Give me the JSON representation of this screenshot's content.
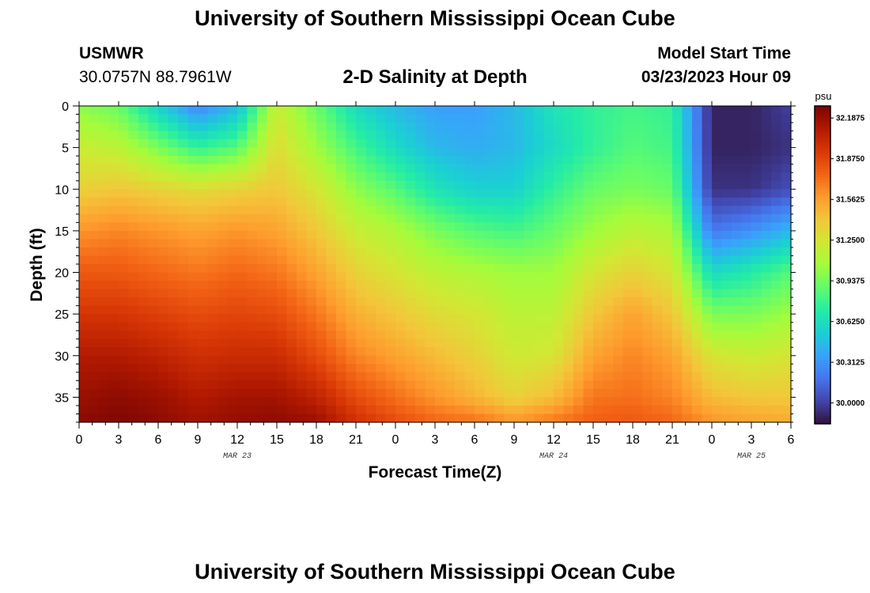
{
  "header": {
    "title": "University of Southern Mississippi Ocean Cube",
    "station": "USMWR",
    "coords": "30.0757N  88.7961W",
    "subtitle": "2-D Salinity at Depth",
    "model_start_label": "Model Start Time",
    "model_start_value": "03/23/2023 Hour 09"
  },
  "footer": {
    "title": "University of Southern Mississippi Ocean Cube"
  },
  "chart_data": {
    "type": "heatmap",
    "title": "2-D Salinity at Depth",
    "xlabel": "Forecast Time(Z)",
    "ylabel": "Depth (ft)",
    "x_range_hours": [
      0,
      54
    ],
    "y_range_ft": [
      0,
      38
    ],
    "x_ticks": [
      "0",
      "3",
      "6",
      "9",
      "12",
      "15",
      "18",
      "21",
      "0",
      "3",
      "6",
      "9",
      "12",
      "15",
      "18",
      "21",
      "0",
      "3",
      "6"
    ],
    "date_labels": [
      {
        "label": "MAR 23",
        "hour": 12
      },
      {
        "label": "MAR 24",
        "hour": 36
      },
      {
        "label": "MAR 25",
        "hour": 51
      }
    ],
    "y_ticks": [
      "0",
      "5",
      "10",
      "15",
      "20",
      "25",
      "30",
      "35"
    ],
    "colorbar": {
      "unit": "psu",
      "min": 29.84,
      "max": 32.28,
      "ticks": [
        "32.1875",
        "31.8750",
        "31.5625",
        "31.2500",
        "30.9375",
        "30.6250",
        "30.3125",
        "30.0000"
      ]
    },
    "colormap": [
      "#30123b",
      "#4145ab",
      "#4675ed",
      "#39a2fc",
      "#1bcfd4",
      "#24eca6",
      "#61fc6c",
      "#a4fc3b",
      "#d1e834",
      "#f3c63a",
      "#fe9b2d",
      "#f36315",
      "#d93806",
      "#b11901",
      "#7a0402"
    ],
    "profile_hours": [
      0,
      3,
      6,
      9,
      12,
      15,
      18,
      21,
      24,
      27,
      30,
      33,
      36,
      39,
      42,
      45,
      48,
      51,
      54
    ],
    "profile_depths_ft": [
      0,
      5,
      10,
      15,
      20,
      25,
      30,
      35,
      38
    ],
    "salinity_psu": [
      [
        31.0,
        31.2,
        31.35,
        31.6,
        31.8,
        31.95,
        32.1,
        32.18,
        32.22
      ],
      [
        30.9,
        31.15,
        31.4,
        31.65,
        31.8,
        31.95,
        32.1,
        32.22,
        32.26
      ],
      [
        30.55,
        30.95,
        31.35,
        31.6,
        31.75,
        31.9,
        32.05,
        32.18,
        32.22
      ],
      [
        30.25,
        30.75,
        31.3,
        31.55,
        31.7,
        31.85,
        31.98,
        32.1,
        32.16
      ],
      [
        30.45,
        30.85,
        31.35,
        31.6,
        31.75,
        31.88,
        32.0,
        32.15,
        32.2
      ],
      [
        31.2,
        31.3,
        31.4,
        31.55,
        31.7,
        31.85,
        32.0,
        32.15,
        32.22
      ],
      [
        30.9,
        31.05,
        31.25,
        31.4,
        31.55,
        31.7,
        31.85,
        32.05,
        32.18
      ],
      [
        30.6,
        30.8,
        31.0,
        31.2,
        31.35,
        31.5,
        31.65,
        31.85,
        31.98
      ],
      [
        30.45,
        30.6,
        30.85,
        31.1,
        31.25,
        31.4,
        31.55,
        31.72,
        31.85
      ],
      [
        30.35,
        30.45,
        30.65,
        30.95,
        31.15,
        31.3,
        31.45,
        31.6,
        31.75
      ],
      [
        30.35,
        30.4,
        30.55,
        30.85,
        31.1,
        31.25,
        31.35,
        31.48,
        31.72
      ],
      [
        30.45,
        30.45,
        30.55,
        30.8,
        31.05,
        31.15,
        31.22,
        31.35,
        31.6
      ],
      [
        30.65,
        30.6,
        30.75,
        30.9,
        31.05,
        31.15,
        31.25,
        31.45,
        31.7
      ],
      [
        30.75,
        30.75,
        30.9,
        31.05,
        31.25,
        31.4,
        31.55,
        31.7,
        31.78
      ],
      [
        30.8,
        30.85,
        30.95,
        31.15,
        31.35,
        31.55,
        31.65,
        31.72,
        31.8
      ],
      [
        30.75,
        30.8,
        30.9,
        31.1,
        31.25,
        31.4,
        31.55,
        31.65,
        31.75
      ],
      [
        29.9,
        29.9,
        29.95,
        30.2,
        30.6,
        30.95,
        31.25,
        31.45,
        31.6
      ],
      [
        29.9,
        29.9,
        29.95,
        30.3,
        30.7,
        30.95,
        31.2,
        31.4,
        31.55
      ],
      [
        30.0,
        29.95,
        30.05,
        30.45,
        30.85,
        31.05,
        31.25,
        31.4,
        31.52
      ]
    ]
  }
}
